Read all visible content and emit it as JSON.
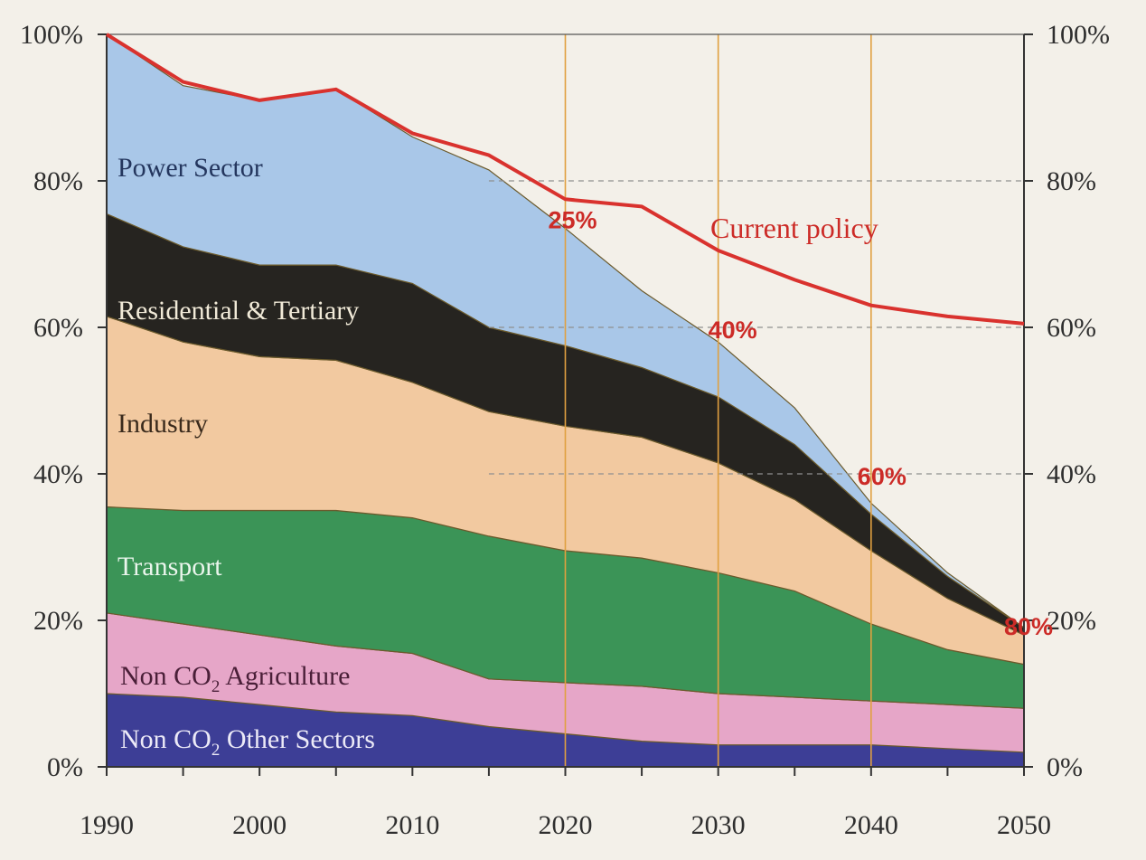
{
  "chart_data": {
    "type": "area",
    "stacked": true,
    "x": [
      1990,
      1995,
      2000,
      2005,
      2010,
      2015,
      2020,
      2025,
      2030,
      2035,
      2040,
      2045,
      2050
    ],
    "x_ticks": [
      "1990",
      "2000",
      "2010",
      "2020",
      "2030",
      "2040",
      "2050"
    ],
    "y_ticks": [
      "0%",
      "20%",
      "40%",
      "60%",
      "80%",
      "100%"
    ],
    "y_ticks_right": [
      "0%",
      "20%",
      "40%",
      "60%",
      "80%",
      "100%"
    ],
    "ylim": [
      0,
      100
    ],
    "xlim": [
      1990,
      2050
    ],
    "series": [
      {
        "name": "Non CO2 Other Sectors",
        "color": "#3d3e96",
        "values": [
          10,
          9.5,
          8.5,
          7.5,
          7,
          5.5,
          4.5,
          3.5,
          3,
          3,
          3,
          2.5,
          2
        ]
      },
      {
        "name": "Non CO2 Agriculture",
        "color": "#e6a6c8",
        "values": [
          11,
          10,
          9.5,
          9,
          8.5,
          6.5,
          7,
          7.5,
          7,
          6.5,
          6,
          6,
          6
        ]
      },
      {
        "name": "Transport",
        "color": "#3b9457",
        "values": [
          14.5,
          15.5,
          17,
          18.5,
          18.5,
          19.5,
          18,
          17.5,
          16.5,
          14.5,
          10.5,
          7.5,
          6
        ]
      },
      {
        "name": "Industry",
        "color": "#f2c9a0",
        "values": [
          26,
          23,
          21,
          20.5,
          18.5,
          17,
          17,
          16.5,
          15,
          12.5,
          10,
          7,
          4
        ]
      },
      {
        "name": "Residential & Tertiary",
        "color": "#262420",
        "values": [
          14,
          13,
          12.5,
          13,
          13.5,
          11.5,
          11,
          9.5,
          9,
          7.5,
          5,
          3,
          1
        ]
      },
      {
        "name": "Power Sector",
        "color": "#a9c7e8",
        "values": [
          24.5,
          22,
          22.5,
          24,
          20,
          21.5,
          16,
          10.5,
          7.5,
          5,
          1.5,
          0.5,
          0
        ]
      }
    ],
    "current_policy": {
      "name": "Current policy",
      "color": "#d9322e",
      "values": [
        100,
        93.5,
        91,
        92.5,
        86.5,
        83.5,
        77.5,
        76.5,
        70.5,
        66.5,
        63,
        61.5,
        60.5
      ]
    },
    "annotations": [
      {
        "text": "25%",
        "x": 2020,
        "y": 75
      },
      {
        "text": "40%",
        "x": 2030,
        "y": 60
      },
      {
        "text": "60%",
        "x": 2040,
        "y": 40
      },
      {
        "text": "80%",
        "x": 2050,
        "y": 20
      }
    ],
    "reference_lines": {
      "vertical_years": [
        2020,
        2030,
        2040
      ],
      "horizontal_dashed_values": [
        80,
        60,
        40
      ]
    },
    "labels": {
      "power_sector": "Power Sector",
      "residential": "Residential & Tertiary",
      "industry": "Industry",
      "transport": "Transport",
      "agri_prefix": "Non CO",
      "agri_sub": "2",
      "agri_suffix": " Agriculture",
      "other_prefix": "Non CO",
      "other_sub": "2",
      "other_suffix": " Other Sectors",
      "current_policy": "Current policy"
    }
  }
}
